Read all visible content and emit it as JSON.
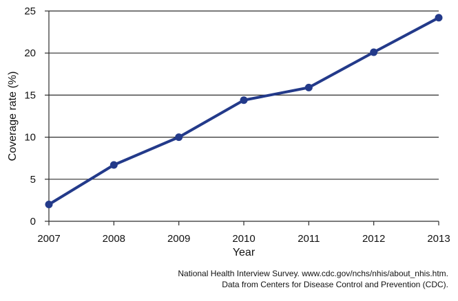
{
  "chart_data": {
    "type": "line",
    "xlabel": "Year",
    "ylabel": "Coverage rate (%)",
    "ylim": [
      0,
      25
    ],
    "yticks": [
      0,
      5,
      10,
      15,
      20,
      25
    ],
    "categories": [
      "2007",
      "2008",
      "2009",
      "2010",
      "2011",
      "2012",
      "2013"
    ],
    "series": [
      {
        "values": [
          2.0,
          6.7,
          10.0,
          14.4,
          15.9,
          20.1,
          24.2
        ]
      }
    ],
    "grid": true,
    "line_color": "#233a8a"
  },
  "source": {
    "line1": "National Health Interview Survey. www.cdc.gov/nchs/nhis/about_nhis.htm.",
    "line2": "Data from Centers for Disease Control and Prevention (CDC)."
  }
}
